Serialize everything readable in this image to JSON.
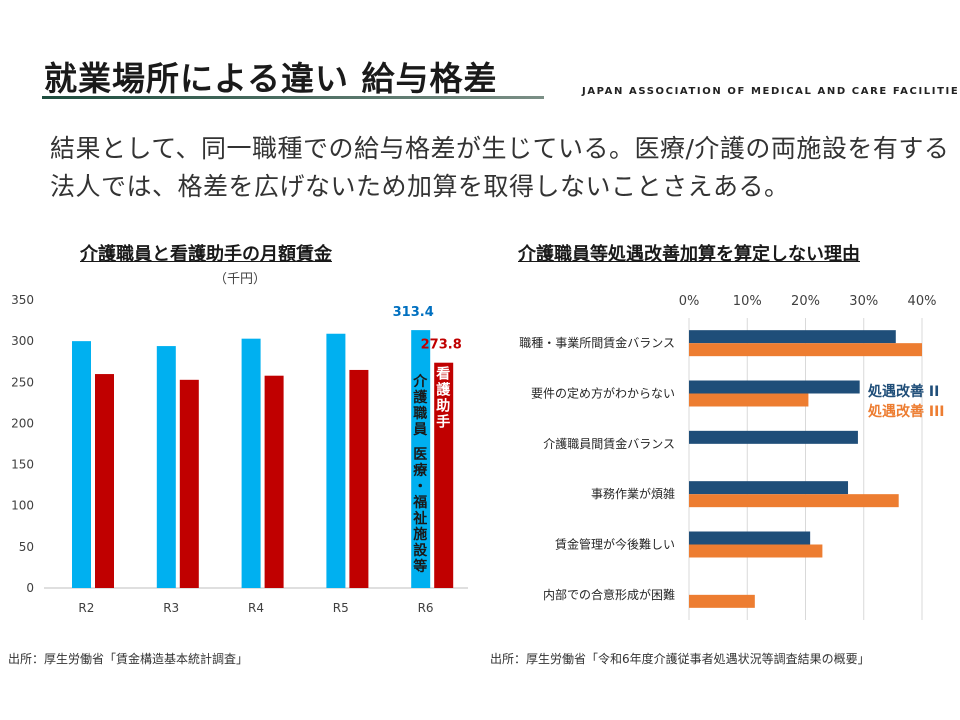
{
  "slide": {
    "title": "就業場所による違い 給与格差",
    "organization": "JAPAN ASSOCIATION OF MEDICAL AND CARE FACILITIES",
    "lead_text": "結果として、同一職種での給与格差が生じている。医療/介護の両施設を有する法人では、格差を広げないため加算を取得しないことさえある。",
    "left_chart_title": "介護職員と看護助手の月額賃金",
    "left_unit": "（千円）",
    "right_chart_title": "介護職員等処遇改善加算を算定しない理由",
    "left_source": "出所：厚生労働省「賃金構造基本統計調査」",
    "right_source": "出所：厚生労働省「令和6年度介護従事者処遇状況等調査結果の概要」"
  },
  "chart_data": [
    {
      "type": "bar",
      "categories": [
        "R2",
        "R3",
        "R4",
        "R5",
        "R6"
      ],
      "series": [
        {
          "name": "介護職員 医療・福祉施設等",
          "color": "#00b0f0",
          "values": [
            300,
            294,
            303,
            309,
            313.4
          ]
        },
        {
          "name": "看護助手",
          "color": "#c00000",
          "values": [
            260,
            253,
            258,
            265,
            273.8
          ]
        }
      ],
      "data_labels": [
        "313.4",
        "273.8"
      ],
      "label_colors": [
        "#0070c0",
        "#c00000"
      ],
      "y_ticks": [
        0,
        50,
        100,
        150,
        200,
        250,
        300,
        350
      ],
      "ylim": [
        0,
        350
      ],
      "grid": false,
      "legend": "inside-bars"
    },
    {
      "type": "bar",
      "orientation": "horizontal",
      "categories": [
        "職種・事業所間賃金バランス",
        "要件の定め方がわからない",
        "介護職員間賃金バランス",
        "事務作業が煩雑",
        "賃金管理が今後難しい",
        "内部での合意形成が困難"
      ],
      "series": [
        {
          "name": "処遇改善 II",
          "color": "#1f4e79",
          "values": [
            35.5,
            29.3,
            29,
            27.3,
            20.8,
            null
          ]
        },
        {
          "name": "処遇改善 III",
          "color": "#ed7d31",
          "values": [
            40,
            20.5,
            null,
            36,
            22.9,
            11.3
          ]
        }
      ],
      "x_ticks": [
        "0%",
        "10%",
        "20%",
        "30%",
        "40%"
      ],
      "xlim": [
        0,
        40
      ],
      "grid": true,
      "legend": "right"
    }
  ]
}
